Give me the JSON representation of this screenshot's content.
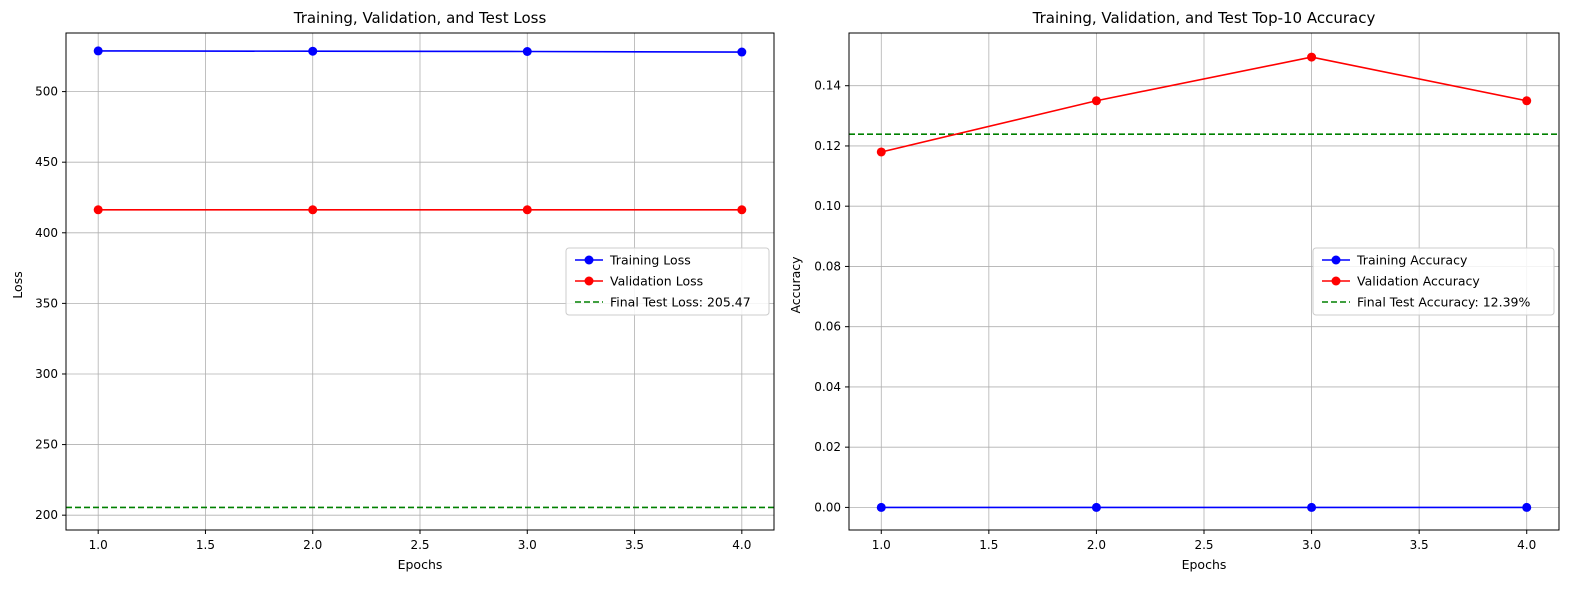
{
  "chart_data": [
    {
      "type": "line",
      "title": "Training, Validation, and Test Loss",
      "xlabel": "Epochs",
      "ylabel": "Loss",
      "xlim": [
        0.85,
        4.15
      ],
      "ylim": [
        189.5,
        541.5
      ],
      "xticks": [
        1.0,
        1.5,
        2.0,
        2.5,
        3.0,
        3.5,
        4.0
      ],
      "xtick_labels": [
        "1.0",
        "1.5",
        "2.0",
        "2.5",
        "3.0",
        "3.5",
        "4.0"
      ],
      "yticks": [
        200,
        250,
        300,
        350,
        400,
        450,
        500
      ],
      "ytick_labels": [
        "200",
        "250",
        "300",
        "350",
        "400",
        "450",
        "500"
      ],
      "grid": true,
      "legend_position": "center-right",
      "series": [
        {
          "name": "Training Loss",
          "color": "#0000ff",
          "marker": "circle",
          "linestyle": "solid",
          "x": [
            1,
            2,
            3,
            4
          ],
          "y": [
            528.8,
            528.6,
            528.4,
            528.0
          ]
        },
        {
          "name": "Validation Loss",
          "color": "#ff0000",
          "marker": "circle",
          "linestyle": "solid",
          "x": [
            1,
            2,
            3,
            4
          ],
          "y": [
            416.3,
            416.3,
            416.3,
            416.3
          ]
        }
      ],
      "hlines": [
        {
          "name": "Final Test Loss: 205.47",
          "y": 205.47,
          "color": "#008000",
          "linestyle": "dashed"
        }
      ]
    },
    {
      "type": "line",
      "title": "Training, Validation, and Test Top-10 Accuracy",
      "xlabel": "Epochs",
      "ylabel": "Accuracy",
      "xlim": [
        0.85,
        4.15
      ],
      "ylim": [
        -0.0075,
        0.1575
      ],
      "xticks": [
        1.0,
        1.5,
        2.0,
        2.5,
        3.0,
        3.5,
        4.0
      ],
      "xtick_labels": [
        "1.0",
        "1.5",
        "2.0",
        "2.5",
        "3.0",
        "3.5",
        "4.0"
      ],
      "yticks": [
        0.0,
        0.02,
        0.04,
        0.06,
        0.08,
        0.1,
        0.12,
        0.14
      ],
      "ytick_labels": [
        "0.00",
        "0.02",
        "0.04",
        "0.06",
        "0.08",
        "0.10",
        "0.12",
        "0.14"
      ],
      "grid": true,
      "legend_position": "center-right",
      "series": [
        {
          "name": "Training Accuracy",
          "color": "#0000ff",
          "marker": "circle",
          "linestyle": "solid",
          "x": [
            1,
            2,
            3,
            4
          ],
          "y": [
            0.0,
            0.0,
            0.0,
            0.0
          ]
        },
        {
          "name": "Validation Accuracy",
          "color": "#ff0000",
          "marker": "circle",
          "linestyle": "solid",
          "x": [
            1,
            2,
            3,
            4
          ],
          "y": [
            0.118,
            0.135,
            0.1495,
            0.135
          ]
        }
      ],
      "hlines": [
        {
          "name": "Final Test Accuracy: 12.39%",
          "y": 0.1239,
          "color": "#008000",
          "linestyle": "dashed"
        }
      ]
    }
  ]
}
